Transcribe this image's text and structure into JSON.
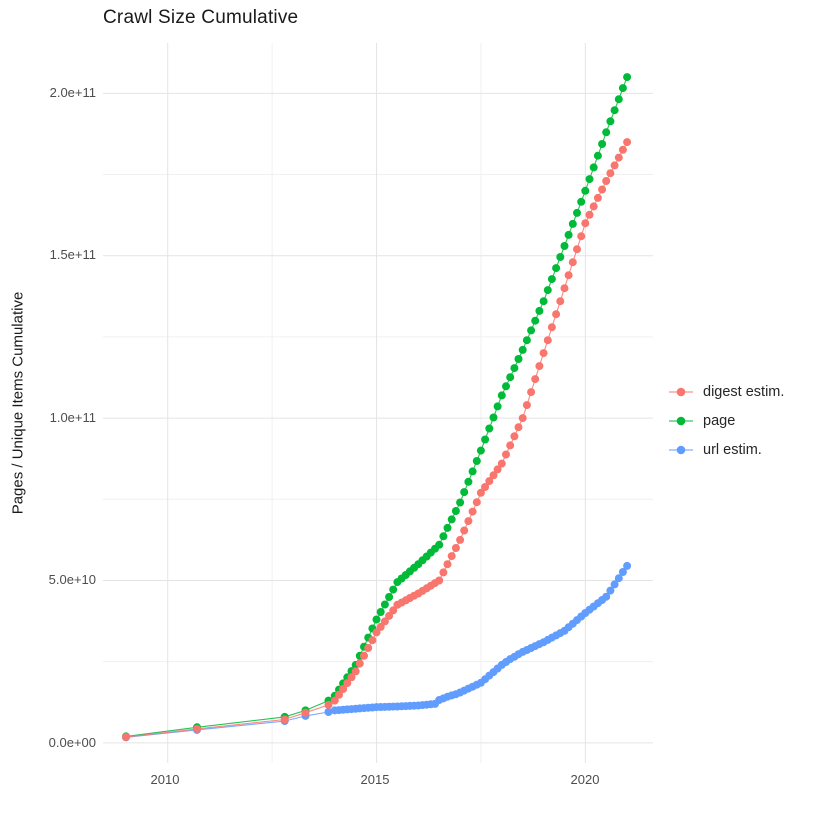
{
  "title": "Crawl Size Cumulative",
  "axes": {
    "x": {
      "tick_labels": [
        "2010",
        "2015",
        "2020"
      ]
    },
    "y": {
      "title": "Pages / Unique Items Cumulative",
      "tick_labels": [
        "0.0e+00",
        "5.0e+10",
        "1.0e+11",
        "1.5e+11",
        "2.0e+11"
      ]
    }
  },
  "legend": {
    "items": [
      "digest estim.",
      "page",
      "url estim."
    ]
  },
  "chart_data": {
    "type": "line",
    "title": "Crawl Size Cumulative",
    "xlabel": "",
    "ylabel": "Pages / Unique Items Cumulative",
    "x_ticks_major": [
      2010,
      2015,
      2020
    ],
    "x_ticks_minor": [
      2012.5,
      2017.5
    ],
    "y_ticks_major_e9": [
      0,
      50,
      100,
      150,
      200
    ],
    "y_ticks_minor_e9": [
      25,
      75,
      125,
      175
    ],
    "y_tick_labels": [
      "0.0e+00",
      "5.0e+10",
      "1.0e+11",
      "1.5e+11",
      "2.0e+11"
    ],
    "xlim": [
      2008.45,
      2021.62
    ],
    "ylim_e9": [
      -6.2,
      215.5
    ],
    "grid": true,
    "legend_position": "right",
    "unit_scale": 1000000000.0,
    "units_note": "point values are cumulative counts in billions (multiply by 1e9); dense segment sampled at 0.1-year (~monthly crawl) intervals read from the plot",
    "series": [
      {
        "name": "digest estim.",
        "color": "#F8766D",
        "early_points": [
          [
            2009.0,
            1.8
          ],
          [
            2010.7,
            4.3
          ],
          [
            2012.8,
            7.2
          ],
          [
            2013.3,
            9.3
          ],
          [
            2013.85,
            11.7
          ]
        ],
        "dense_start": 2014.0,
        "dense_step": 0.1,
        "dense_values": [
          13,
          14.8,
          16.6,
          18.4,
          20.2,
          22,
          24.4,
          26.8,
          29.2,
          31.6,
          34,
          35.7,
          37.4,
          39.1,
          40.8,
          42.5,
          43.2,
          43.9,
          44.6,
          45.3,
          46,
          46.8,
          47.6,
          48.4,
          49.2,
          50,
          52.5,
          55,
          57.5,
          60,
          62.5,
          65.4,
          68.3,
          71.2,
          74.1,
          77,
          78.8,
          80.6,
          82.4,
          84.2,
          86,
          88.8,
          91.6,
          94.4,
          97.2,
          100,
          104,
          108,
          112,
          116,
          120,
          124,
          128,
          132,
          136,
          140,
          144,
          148,
          152,
          156,
          160,
          162.6,
          165.2,
          167.8,
          170.4,
          173,
          175.4,
          177.8,
          180.2,
          182.6,
          185
        ]
      },
      {
        "name": "page",
        "color": "#00BA38",
        "early_points": [
          [
            2009.0,
            2
          ],
          [
            2010.7,
            4.8
          ],
          [
            2012.8,
            8
          ],
          [
            2013.3,
            10
          ],
          [
            2013.85,
            13
          ]
        ],
        "dense_start": 2014.0,
        "dense_step": 0.1,
        "dense_values": [
          14.5,
          16.4,
          18.3,
          20.2,
          22.1,
          24,
          26.8,
          29.6,
          32.4,
          35.2,
          38,
          40.3,
          42.6,
          44.9,
          47.2,
          49.5,
          50.6,
          51.7,
          52.8,
          53.9,
          55,
          56.2,
          57.4,
          58.6,
          59.8,
          61,
          63.6,
          66.2,
          68.8,
          71.4,
          74,
          77.2,
          80.4,
          83.6,
          86.8,
          90,
          93.4,
          96.8,
          100.2,
          103.6,
          107,
          109.8,
          112.6,
          115.4,
          118.2,
          121,
          124,
          127,
          130,
          133,
          136,
          139.4,
          142.8,
          146.2,
          149.6,
          153,
          156.4,
          159.8,
          163.2,
          166.6,
          170,
          173.6,
          177.2,
          180.8,
          184.4,
          188,
          191.4,
          194.8,
          198.2,
          201.6,
          205
        ]
      },
      {
        "name": "url estim.",
        "color": "#619CFF",
        "early_points": [
          [
            2009.0,
            1.7
          ],
          [
            2010.7,
            4
          ],
          [
            2012.8,
            6.7
          ],
          [
            2013.3,
            8.3
          ],
          [
            2013.85,
            9.5
          ]
        ],
        "dense_start": 2014.0,
        "dense_step": 0.1,
        "dense_values": [
          10,
          10.1,
          10.2,
          10.3,
          10.4,
          10.5,
          10.6,
          10.7,
          10.8,
          10.9,
          11,
          11.04,
          11.08,
          11.12,
          11.16,
          11.2,
          11.26,
          11.32,
          11.38,
          11.44,
          11.5,
          11.62,
          11.75,
          11.87,
          12,
          13.2,
          13.7,
          14.2,
          14.6,
          15,
          15.5,
          16.1,
          16.7,
          17.3,
          17.9,
          18.5,
          19.6,
          20.7,
          21.8,
          22.9,
          24,
          24.9,
          25.8,
          26.5,
          27.3,
          28,
          28.6,
          29.2,
          29.8,
          30.4,
          31,
          31.7,
          32.4,
          33.1,
          33.8,
          34.5,
          35.6,
          36.7,
          37.8,
          38.9,
          40,
          41,
          42,
          43,
          44,
          45,
          46.9,
          48.8,
          50.7,
          52.6,
          54.5
        ]
      }
    ],
    "colors": {
      "digest": "#F8766D",
      "page": "#00BA38",
      "url": "#619CFF",
      "grid_major": "#E4E4E4",
      "grid_minor": "#F0F0F0",
      "axis_text": "#4d4d4d"
    }
  }
}
